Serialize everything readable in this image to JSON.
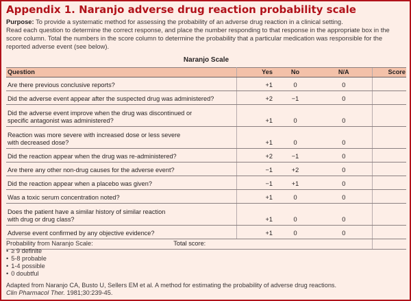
{
  "document": {
    "title": "Appendix 1. Naranjo adverse drug reaction probability scale",
    "purpose_label": "Purpose:",
    "purpose_text": " To provide a systematic method for assessing the probability of an adverse drug reaction in a clinical setting.",
    "instructions": "Read each question to determine the correct response, and place the number responding to that response in the appropriate box in the score column. Total the numbers in the score column to determine the probability that a particular medication was responsible for the reported adverse event (see below).",
    "scale_title": "Naranjo Scale"
  },
  "table": {
    "headers": {
      "question": "Question",
      "yes": "Yes",
      "no": "No",
      "na": "N/A",
      "score": "Score"
    },
    "rows": [
      {
        "q1": "Are there previous conclusive reports?",
        "q2": "",
        "yes": "+1",
        "no": "0",
        "na": "0"
      },
      {
        "q1": "Did the adverse event appear after the suspected drug was administered?",
        "q2": "",
        "yes": "+2",
        "no": "−1",
        "na": "0"
      },
      {
        "q1": "Did the adverse event improve when the drug was discontinued or",
        "q2": "specific antagonist was administered?",
        "yes": "+1",
        "no": "0",
        "na": "0"
      },
      {
        "q1": "Reaction was more severe with increased dose or less severe",
        "q2": "with decreased dose?",
        "yes": "+1",
        "no": "0",
        "na": "0"
      },
      {
        "q1": "Did the reaction appear when the drug was re-administered?",
        "q2": "",
        "yes": "+2",
        "no": "−1",
        "na": "0"
      },
      {
        "q1": "Are there any other non-drug causes for the adverse event?",
        "q2": "",
        "yes": "−1",
        "no": "+2",
        "na": "0"
      },
      {
        "q1": "Did the reaction appear when a placebo was given?",
        "q2": "",
        "yes": "−1",
        "no": "+1",
        "na": "0"
      },
      {
        "q1": "Was a toxic serum concentration noted?",
        "q2": "",
        "yes": "+1",
        "no": "0",
        "na": "0"
      },
      {
        "q1": "Does the patient have a similar history of similar reaction",
        "q2": "with drug or drug class?",
        "yes": "+1",
        "no": "0",
        "na": "0"
      },
      {
        "q1": "Adverse event confirmed by any objective evidence?",
        "q2": "",
        "yes": "+1",
        "no": "0",
        "na": "0"
      }
    ],
    "total_label": "Total score:"
  },
  "probability": {
    "heading": "Probability from Naranjo Scale:",
    "items": [
      "≥ 9 definite",
      "5-8 probable",
      "1-4 possible",
      "0 doubtful"
    ]
  },
  "source": {
    "text": "Adapted from Naranjo CA, Busto U, Sellers EM et al. A method for estimating the probability of adverse drug reactions.",
    "journal": "Clin Pharmacol Ther.",
    "citation": " 1981;30:239-45."
  },
  "colors": {
    "accent": "#b1121a",
    "background": "#fdeee7",
    "header_band": "#f3c1a9"
  }
}
